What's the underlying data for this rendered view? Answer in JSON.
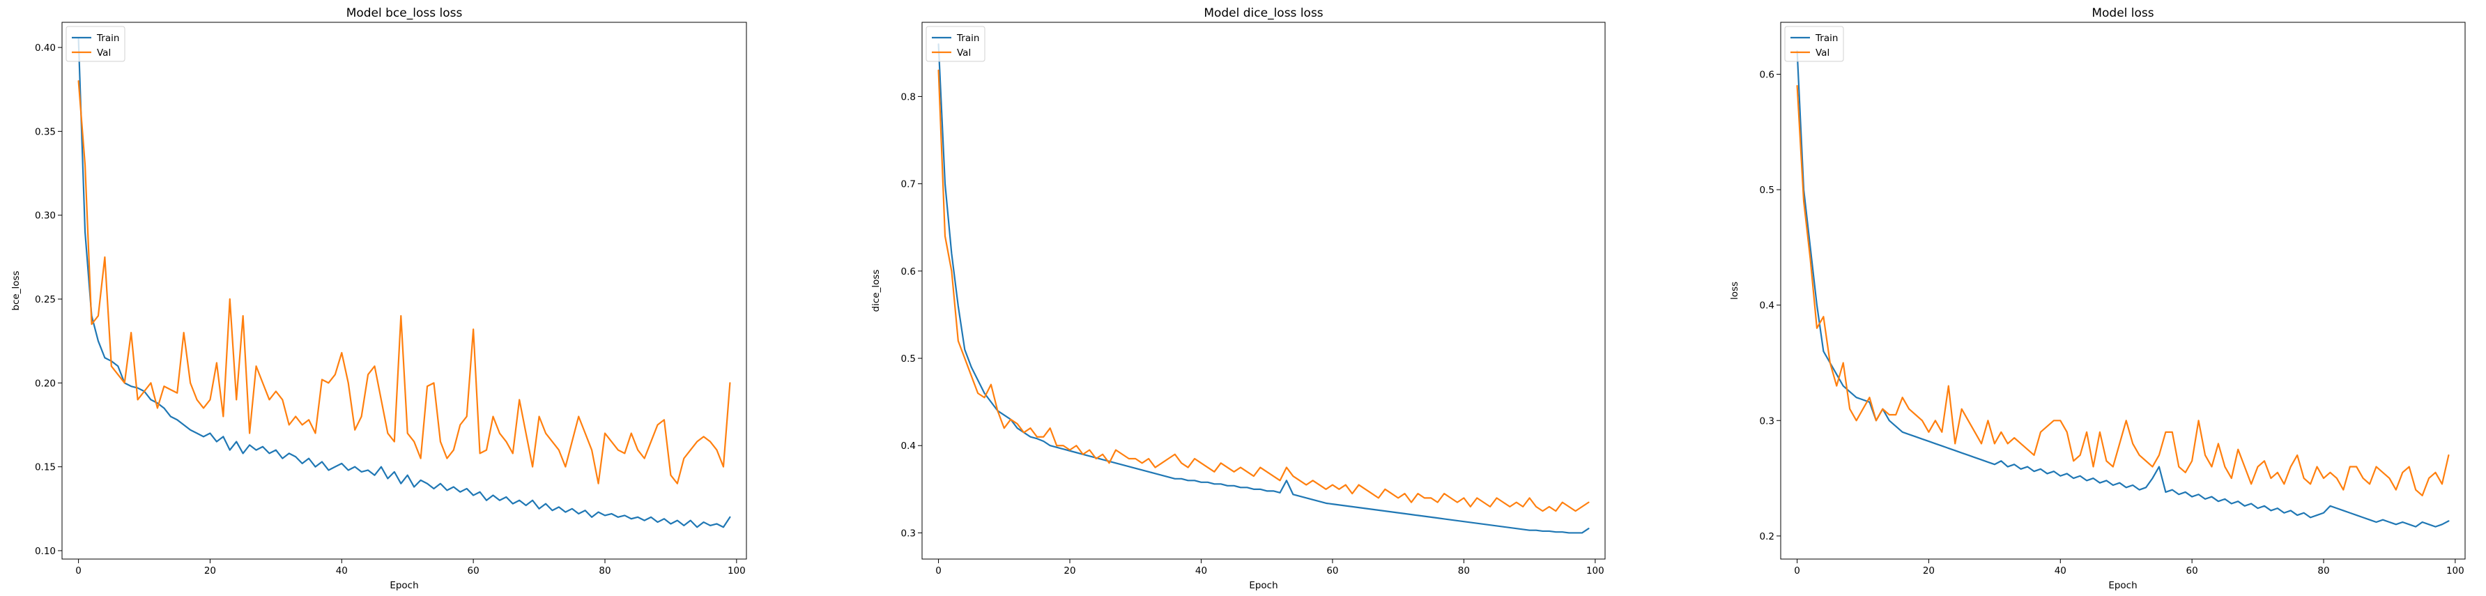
{
  "chart_data": [
    {
      "type": "line",
      "title": "Model bce_loss loss",
      "xlabel": "Epoch",
      "ylabel": "bce_loss",
      "xlim": [
        -2.5,
        101.5
      ],
      "ylim": [
        0.095,
        0.415
      ],
      "xticks": [
        0,
        20,
        40,
        60,
        80,
        100
      ],
      "yticks": [
        0.1,
        0.15,
        0.2,
        0.25,
        0.3,
        0.35,
        0.4
      ],
      "ytick_labels": [
        "0.10",
        "0.15",
        "0.20",
        "0.25",
        "0.30",
        "0.35",
        "0.40"
      ],
      "grid": false,
      "legend_position": "upper-left",
      "series": [
        {
          "name": "Train",
          "color": "#1f77b4",
          "values": [
            0.405,
            0.29,
            0.24,
            0.225,
            0.215,
            0.213,
            0.21,
            0.2,
            0.198,
            0.197,
            0.195,
            0.19,
            0.188,
            0.185,
            0.18,
            0.178,
            0.175,
            0.172,
            0.17,
            0.168,
            0.17,
            0.165,
            0.168,
            0.16,
            0.165,
            0.158,
            0.163,
            0.16,
            0.162,
            0.158,
            0.16,
            0.155,
            0.158,
            0.156,
            0.152,
            0.155,
            0.15,
            0.153,
            0.148,
            0.15,
            0.152,
            0.148,
            0.15,
            0.147,
            0.148,
            0.145,
            0.15,
            0.143,
            0.147,
            0.14,
            0.145,
            0.138,
            0.142,
            0.14,
            0.137,
            0.14,
            0.136,
            0.138,
            0.135,
            0.137,
            0.133,
            0.135,
            0.13,
            0.133,
            0.13,
            0.132,
            0.128,
            0.13,
            0.127,
            0.13,
            0.125,
            0.128,
            0.124,
            0.126,
            0.123,
            0.125,
            0.122,
            0.124,
            0.12,
            0.123,
            0.121,
            0.122,
            0.12,
            0.121,
            0.119,
            0.12,
            0.118,
            0.12,
            0.117,
            0.119,
            0.116,
            0.118,
            0.115,
            0.118,
            0.114,
            0.117,
            0.115,
            0.116,
            0.114,
            0.12
          ]
        },
        {
          "name": "Val",
          "color": "#ff7f0e",
          "values": [
            0.38,
            0.33,
            0.235,
            0.24,
            0.275,
            0.21,
            0.205,
            0.2,
            0.23,
            0.19,
            0.195,
            0.2,
            0.185,
            0.198,
            0.196,
            0.194,
            0.23,
            0.2,
            0.19,
            0.185,
            0.19,
            0.212,
            0.18,
            0.25,
            0.19,
            0.24,
            0.17,
            0.21,
            0.2,
            0.19,
            0.195,
            0.19,
            0.175,
            0.18,
            0.175,
            0.178,
            0.17,
            0.202,
            0.2,
            0.205,
            0.218,
            0.2,
            0.172,
            0.18,
            0.205,
            0.21,
            0.19,
            0.17,
            0.165,
            0.24,
            0.17,
            0.165,
            0.155,
            0.198,
            0.2,
            0.165,
            0.155,
            0.16,
            0.175,
            0.18,
            0.232,
            0.158,
            0.16,
            0.18,
            0.17,
            0.165,
            0.158,
            0.19,
            0.17,
            0.15,
            0.18,
            0.17,
            0.165,
            0.16,
            0.15,
            0.165,
            0.18,
            0.17,
            0.16,
            0.14,
            0.17,
            0.165,
            0.16,
            0.158,
            0.17,
            0.16,
            0.155,
            0.165,
            0.175,
            0.178,
            0.145,
            0.14,
            0.155,
            0.16,
            0.165,
            0.168,
            0.165,
            0.16,
            0.15,
            0.2
          ]
        }
      ]
    },
    {
      "type": "line",
      "title": "Model dice_loss loss",
      "xlabel": "Epoch",
      "ylabel": "dice_loss",
      "xlim": [
        -2.5,
        101.5
      ],
      "ylim": [
        0.27,
        0.885
      ],
      "xticks": [
        0,
        20,
        40,
        60,
        80,
        100
      ],
      "yticks": [
        0.3,
        0.4,
        0.5,
        0.6,
        0.7,
        0.8
      ],
      "ytick_labels": [
        "0.3",
        "0.4",
        "0.5",
        "0.6",
        "0.7",
        "0.8"
      ],
      "grid": false,
      "legend_position": "upper-left",
      "series": [
        {
          "name": "Train",
          "color": "#1f77b4",
          "values": [
            0.86,
            0.7,
            0.62,
            0.56,
            0.51,
            0.49,
            0.475,
            0.46,
            0.45,
            0.44,
            0.435,
            0.43,
            0.42,
            0.415,
            0.41,
            0.408,
            0.405,
            0.4,
            0.398,
            0.396,
            0.394,
            0.392,
            0.39,
            0.388,
            0.386,
            0.384,
            0.382,
            0.38,
            0.378,
            0.376,
            0.374,
            0.372,
            0.37,
            0.368,
            0.366,
            0.364,
            0.362,
            0.362,
            0.36,
            0.36,
            0.358,
            0.358,
            0.356,
            0.356,
            0.354,
            0.354,
            0.352,
            0.352,
            0.35,
            0.35,
            0.348,
            0.348,
            0.346,
            0.36,
            0.344,
            0.342,
            0.34,
            0.338,
            0.336,
            0.334,
            0.333,
            0.332,
            0.331,
            0.33,
            0.329,
            0.328,
            0.327,
            0.326,
            0.325,
            0.324,
            0.323,
            0.322,
            0.321,
            0.32,
            0.319,
            0.318,
            0.317,
            0.316,
            0.315,
            0.314,
            0.313,
            0.312,
            0.311,
            0.31,
            0.309,
            0.308,
            0.307,
            0.306,
            0.305,
            0.304,
            0.303,
            0.303,
            0.302,
            0.302,
            0.301,
            0.301,
            0.3,
            0.3,
            0.3,
            0.305
          ]
        },
        {
          "name": "Val",
          "color": "#ff7f0e",
          "values": [
            0.83,
            0.64,
            0.6,
            0.52,
            0.5,
            0.48,
            0.46,
            0.455,
            0.47,
            0.44,
            0.42,
            0.43,
            0.425,
            0.415,
            0.42,
            0.41,
            0.41,
            0.42,
            0.4,
            0.4,
            0.395,
            0.4,
            0.39,
            0.395,
            0.385,
            0.39,
            0.38,
            0.395,
            0.39,
            0.385,
            0.385,
            0.38,
            0.385,
            0.375,
            0.38,
            0.385,
            0.39,
            0.38,
            0.375,
            0.385,
            0.38,
            0.375,
            0.37,
            0.38,
            0.375,
            0.37,
            0.375,
            0.37,
            0.365,
            0.375,
            0.37,
            0.365,
            0.36,
            0.375,
            0.365,
            0.36,
            0.355,
            0.36,
            0.355,
            0.35,
            0.355,
            0.35,
            0.355,
            0.345,
            0.355,
            0.35,
            0.345,
            0.34,
            0.35,
            0.345,
            0.34,
            0.345,
            0.335,
            0.345,
            0.34,
            0.34,
            0.335,
            0.345,
            0.34,
            0.335,
            0.34,
            0.33,
            0.34,
            0.335,
            0.33,
            0.34,
            0.335,
            0.33,
            0.335,
            0.33,
            0.34,
            0.33,
            0.325,
            0.33,
            0.325,
            0.335,
            0.33,
            0.325,
            0.33,
            0.335
          ]
        }
      ]
    },
    {
      "type": "line",
      "title": "Model loss",
      "xlabel": "Epoch",
      "ylabel": "loss",
      "xlim": [
        -2.5,
        101.5
      ],
      "ylim": [
        0.18,
        0.645
      ],
      "xticks": [
        0,
        20,
        40,
        60,
        80,
        100
      ],
      "yticks": [
        0.2,
        0.3,
        0.4,
        0.5,
        0.6
      ],
      "ytick_labels": [
        "0.2",
        "0.3",
        "0.4",
        "0.5",
        "0.6"
      ],
      "grid": false,
      "legend_position": "upper-left",
      "series": [
        {
          "name": "Train",
          "color": "#1f77b4",
          "values": [
            0.62,
            0.5,
            0.45,
            0.4,
            0.36,
            0.35,
            0.34,
            0.33,
            0.325,
            0.32,
            0.318,
            0.316,
            0.3,
            0.31,
            0.3,
            0.295,
            0.29,
            0.288,
            0.286,
            0.284,
            0.282,
            0.28,
            0.278,
            0.276,
            0.274,
            0.272,
            0.27,
            0.268,
            0.266,
            0.264,
            0.262,
            0.265,
            0.26,
            0.262,
            0.258,
            0.26,
            0.256,
            0.258,
            0.254,
            0.256,
            0.252,
            0.254,
            0.25,
            0.252,
            0.248,
            0.25,
            0.246,
            0.248,
            0.244,
            0.246,
            0.242,
            0.244,
            0.24,
            0.242,
            0.25,
            0.26,
            0.238,
            0.24,
            0.236,
            0.238,
            0.234,
            0.236,
            0.232,
            0.234,
            0.23,
            0.232,
            0.228,
            0.23,
            0.226,
            0.228,
            0.224,
            0.226,
            0.222,
            0.224,
            0.22,
            0.222,
            0.218,
            0.22,
            0.216,
            0.218,
            0.22,
            0.226,
            0.224,
            0.222,
            0.22,
            0.218,
            0.216,
            0.214,
            0.212,
            0.214,
            0.212,
            0.21,
            0.212,
            0.21,
            0.208,
            0.212,
            0.21,
            0.208,
            0.21,
            0.213
          ]
        },
        {
          "name": "Val",
          "color": "#ff7f0e",
          "values": [
            0.59,
            0.49,
            0.44,
            0.38,
            0.39,
            0.35,
            0.33,
            0.35,
            0.31,
            0.3,
            0.31,
            0.32,
            0.3,
            0.31,
            0.305,
            0.305,
            0.32,
            0.31,
            0.305,
            0.3,
            0.29,
            0.3,
            0.29,
            0.33,
            0.28,
            0.31,
            0.3,
            0.29,
            0.28,
            0.3,
            0.28,
            0.29,
            0.28,
            0.285,
            0.28,
            0.275,
            0.27,
            0.29,
            0.295,
            0.3,
            0.3,
            0.29,
            0.265,
            0.27,
            0.29,
            0.26,
            0.29,
            0.265,
            0.26,
            0.28,
            0.3,
            0.28,
            0.27,
            0.265,
            0.26,
            0.27,
            0.29,
            0.29,
            0.26,
            0.255,
            0.265,
            0.3,
            0.27,
            0.26,
            0.28,
            0.26,
            0.25,
            0.275,
            0.26,
            0.245,
            0.26,
            0.265,
            0.25,
            0.255,
            0.245,
            0.26,
            0.27,
            0.25,
            0.245,
            0.26,
            0.25,
            0.255,
            0.25,
            0.24,
            0.26,
            0.26,
            0.25,
            0.245,
            0.26,
            0.255,
            0.25,
            0.24,
            0.255,
            0.26,
            0.24,
            0.235,
            0.25,
            0.255,
            0.245,
            0.27
          ]
        }
      ]
    }
  ]
}
